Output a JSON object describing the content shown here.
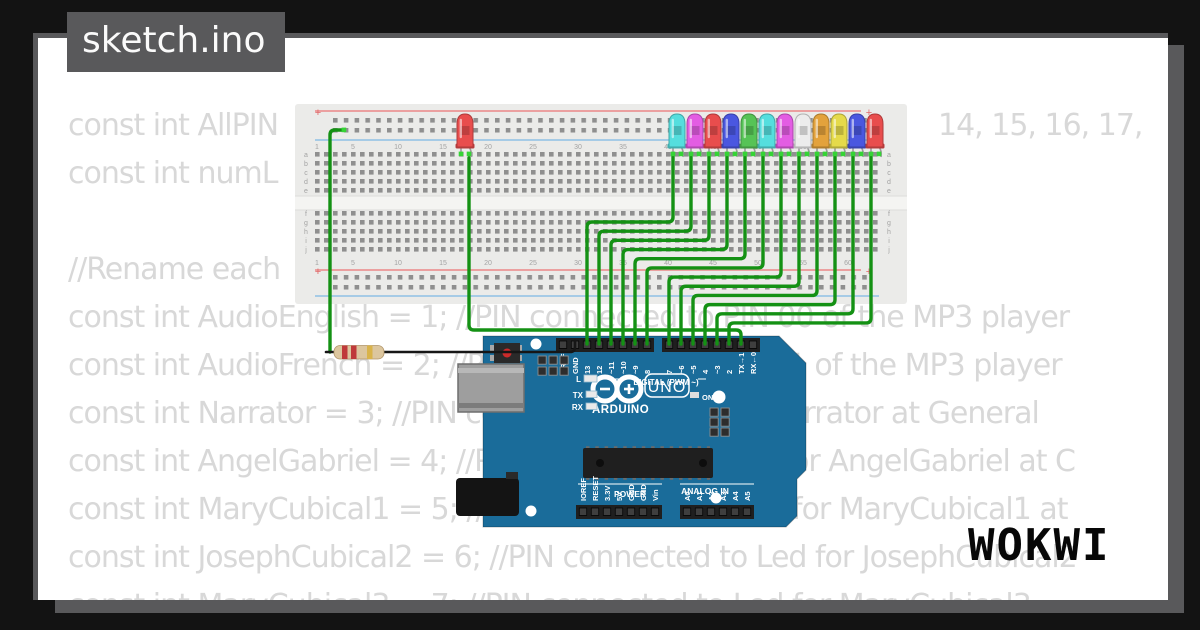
{
  "file_tab": {
    "name": "sketch.ino"
  },
  "watermark": {
    "brand": "WOKWI"
  },
  "code_lines": [
    {
      "left": "const int AllPIN",
      "right": "14, 15, 16, 17,"
    },
    {
      "left": "const int numL",
      "right": ""
    },
    {
      "left": "//Rename each",
      "right": ""
    },
    {
      "full": "const int AudioEnglish = 1; //PIN connected to PIN 00 of the MP3 player"
    },
    {
      "full": "const int AudioFrench = 2; //PIN connected to PIN 01 of the MP3 player"
    },
    {
      "full": "const int Narrator = 3; //PIN connected to Led for Narrator at General"
    },
    {
      "full": "const int AngelGabriel = 4; //PIN connected to Led for AngelGabriel at C"
    },
    {
      "full": "const int MaryCubical1 = 5; //PIN connected to Led for MaryCubical1 at"
    },
    {
      "full": "const int JosephCubical2 = 6; //PIN connected to Led for JosephCubical2"
    },
    {
      "full": "const int MaryCubical3 = 7; //PIN connected to Led for MaryCubical3"
    }
  ],
  "breadboard": {
    "column_numbers": [
      "1",
      "5",
      "10",
      "15",
      "20",
      "25",
      "30",
      "35",
      "40",
      "45",
      "50",
      "55",
      "60"
    ],
    "row_letters_upper": [
      "a",
      "b",
      "c",
      "d",
      "e"
    ],
    "row_letters_lower": [
      "f",
      "g",
      "h",
      "i",
      "j"
    ],
    "rail_plus": "+"
  },
  "leds": {
    "lone": {
      "color_name": "red",
      "hex": "#e84d4d"
    },
    "row": [
      {
        "color_name": "cyan",
        "hex": "#55dede"
      },
      {
        "color_name": "magenta",
        "hex": "#e35de3"
      },
      {
        "color_name": "red",
        "hex": "#e84d4d"
      },
      {
        "color_name": "blue",
        "hex": "#4a57e0"
      },
      {
        "color_name": "green",
        "hex": "#56c356"
      },
      {
        "color_name": "cyan",
        "hex": "#55dede"
      },
      {
        "color_name": "magenta",
        "hex": "#e35de3"
      },
      {
        "color_name": "white",
        "hex": "#ececec"
      },
      {
        "color_name": "orange",
        "hex": "#e3a23c"
      },
      {
        "color_name": "yellow",
        "hex": "#e5da4a"
      },
      {
        "color_name": "blue",
        "hex": "#4a57e0"
      },
      {
        "color_name": "red",
        "hex": "#e84d4d"
      }
    ]
  },
  "arduino": {
    "digital_pin_labels": [
      "AREF",
      "GND",
      "13",
      "12",
      "~11",
      "~10",
      "~9",
      "8",
      "7",
      "~6",
      "~5",
      "4",
      "~3",
      "2",
      "TX→1",
      "RX←0"
    ],
    "power_pin_labels": [
      "IOREF",
      "RESET",
      "3.3V",
      "5V",
      "GND",
      "GND",
      "Vin"
    ],
    "analog_pin_labels": [
      "A0",
      "A1",
      "A2",
      "A3",
      "A4",
      "A5"
    ],
    "digital_group_label": "DIGITAL (PWM ~)",
    "power_group_label": "POWER",
    "analog_group_label": "ANALOG IN",
    "brand": "ARDUINO",
    "model": "UNO",
    "led_labels": {
      "l": "L",
      "tx": "TX",
      "rx": "RX",
      "on": "ON"
    }
  },
  "wiring": {
    "wire_color": "#149114",
    "gnd_wire_color": "#161616",
    "dot_color": "#35d435",
    "resistor_body": "#dcc69e",
    "resistor_bands": [
      "#bf3a3a",
      "#bf3a3a",
      "#d9b34a"
    ]
  },
  "colors": {
    "background": "#131313",
    "shadow_gray": "#59595b",
    "page": "#ffffff",
    "faded_code": "#d8d8d8",
    "board_blue": "#1a6c9a",
    "breadboard": "#ebebe9"
  }
}
